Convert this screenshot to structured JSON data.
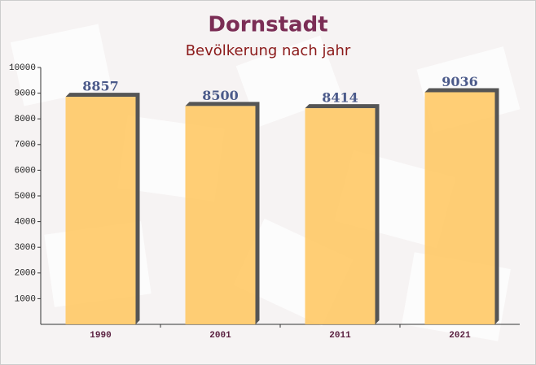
{
  "chart_data": {
    "type": "bar",
    "title": "Dornstadt",
    "subtitle": "Bevölkerung nach jahr",
    "categories": [
      "1990",
      "2001",
      "2011",
      "2021"
    ],
    "values": [
      8857,
      8500,
      8414,
      9036
    ],
    "color": "#ffc966",
    "ylim": [
      0,
      10000
    ],
    "yticks": [
      1000,
      2000,
      3000,
      4000,
      5000,
      6000,
      7000,
      8000,
      9000,
      10000
    ]
  }
}
